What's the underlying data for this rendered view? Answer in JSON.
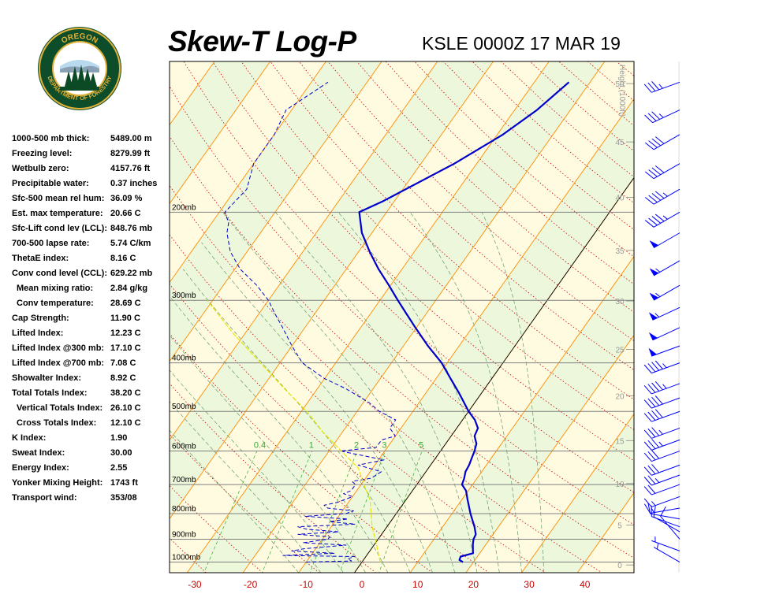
{
  "header": {
    "title": "Skew-T Log-P",
    "station": "KSLE 0000Z 17 MAR 19"
  },
  "logo": {
    "top_text": "OREGON",
    "ring_text": "DEPARTMENT OF FORESTRY",
    "colors": {
      "ring": "#0e4d2a",
      "gold": "#e0b23a",
      "tree": "#0b4a24"
    }
  },
  "indices": [
    {
      "label": "1000-500 mb thick:",
      "value": "5489.00 m"
    },
    {
      "label": "Freezing level:",
      "value": "8279.99 ft"
    },
    {
      "label": "Wetbulb zero:",
      "value": "4157.76 ft"
    },
    {
      "label": "Precipitable water:",
      "value": "0.37 inches"
    },
    {
      "label": "Sfc-500 mean rel hum:",
      "value": "36.09 %"
    },
    {
      "label": "Est. max temperature:",
      "value": "20.66 C"
    },
    {
      "label": "Sfc-Lift cond lev (LCL):",
      "value": "848.76 mb"
    },
    {
      "label": "700-500 lapse rate:",
      "value": "5.74 C/km"
    },
    {
      "label": "ThetaE index:",
      "value": "8.16 C"
    },
    {
      "label": "Conv cond level (CCL):",
      "value": "629.22 mb"
    },
    {
      "label": "Mean mixing ratio:",
      "value": "2.84 g/kg",
      "indent": true
    },
    {
      "label": "Conv temperature:",
      "value": "28.69 C",
      "indent": true
    },
    {
      "label": "Cap Strength:",
      "value": "11.90 C"
    },
    {
      "label": "Lifted Index:",
      "value": "12.23 C"
    },
    {
      "label": "Lifted Index @300 mb:",
      "value": "17.10 C"
    },
    {
      "label": "Lifted Index @700 mb:",
      "value": "7.08 C"
    },
    {
      "label": "Showalter Index:",
      "value": "8.92 C"
    },
    {
      "label": "Total Totals Index:",
      "value": "38.20 C"
    },
    {
      "label": "Vertical Totals Index:",
      "value": "26.10 C",
      "indent": true
    },
    {
      "label": "Cross Totals Index:",
      "value": "12.10 C",
      "indent": true
    },
    {
      "label": "K Index:",
      "value": "1.90"
    },
    {
      "label": "Sweat Index:",
      "value": "30.00"
    },
    {
      "label": "Energy Index:",
      "value": "2.55"
    },
    {
      "label": "Yonker Mixing Height:",
      "value": "1743 ft"
    },
    {
      "label": "Transport wind:",
      "value": "353/08"
    }
  ],
  "chart_data": {
    "type": "line",
    "title": "Skew-T Log-P",
    "xlabel": "",
    "ylabel": "",
    "xlim": [
      -35,
      48
    ],
    "ylim_mb": [
      1050,
      100
    ],
    "x_ticks": [
      "-30",
      "-20",
      "-10",
      "0",
      "10",
      "20",
      "30",
      "40"
    ],
    "pressure_levels": [
      {
        "p": 1000,
        "label": "1000mb"
      },
      {
        "p": 900,
        "label": "900mb"
      },
      {
        "p": 800,
        "label": "800mb"
      },
      {
        "p": 700,
        "label": "700mb"
      },
      {
        "p": 600,
        "label": "600mb"
      },
      {
        "p": 500,
        "label": "500mb"
      },
      {
        "p": 400,
        "label": "400mb"
      },
      {
        "p": 300,
        "label": "300mb"
      },
      {
        "p": 200,
        "label": "200mb"
      }
    ],
    "height_axis": {
      "label": "Height (1000ft)",
      "ticks": [
        "0",
        "5",
        "10",
        "15",
        "20",
        "25",
        "30",
        "35",
        "40",
        "45",
        "50"
      ]
    },
    "mixing_ratio_labels": [
      "0.4",
      "1",
      "2",
      "3",
      "5"
    ],
    "colors": {
      "temperature": "#0000cc",
      "dewpoint": "#0000cc",
      "parcel": "#e6e600",
      "isotherm": "#ff8c00",
      "dry_adiabat": "#cc0000",
      "moist_adiabat": "#669966",
      "mixing_ratio": "#33aa33",
      "isobar": "#808080",
      "wind": "#0000ff",
      "band_a": "#fffbe0",
      "band_b": "#edf7dc",
      "tick_text": "#cc0000"
    },
    "series": [
      {
        "key": "temperature",
        "points": [
          [
            1000,
            18.1
          ],
          [
            990,
            17.2
          ],
          [
            975,
            17.0
          ],
          [
            960,
            18.8
          ],
          [
            940,
            18.2
          ],
          [
            920,
            17.6
          ],
          [
            900,
            17.1
          ],
          [
            880,
            16.9
          ],
          [
            850,
            15.7
          ],
          [
            800,
            13.3
          ],
          [
            750,
            11.0
          ],
          [
            720,
            9.6
          ],
          [
            700,
            8.1
          ],
          [
            680,
            7.7
          ],
          [
            660,
            7.1
          ],
          [
            640,
            6.9
          ],
          [
            620,
            6.5
          ],
          [
            600,
            6.1
          ],
          [
            580,
            5.5
          ],
          [
            560,
            4.2
          ],
          [
            540,
            3.8
          ],
          [
            520,
            2.2
          ],
          [
            500,
            0.0
          ],
          [
            460,
            -4.0
          ],
          [
            430,
            -7.4
          ],
          [
            400,
            -11.0
          ],
          [
            370,
            -15.6
          ],
          [
            340,
            -20.2
          ],
          [
            320,
            -23.4
          ],
          [
            300,
            -26.8
          ],
          [
            280,
            -30.3
          ],
          [
            260,
            -34.2
          ],
          [
            240,
            -38.0
          ],
          [
            220,
            -41.8
          ],
          [
            200,
            -44.9
          ],
          [
            190,
            -42.0
          ],
          [
            160,
            -34.0
          ],
          [
            140,
            -29.0
          ],
          [
            125,
            -26.0
          ],
          [
            110,
            -23.8
          ]
        ]
      },
      {
        "key": "dewpoint",
        "points": [
          [
            1000,
            -10.0
          ],
          [
            995,
            -2.0
          ],
          [
            985,
            -3.0
          ],
          [
            975,
            -2.0
          ],
          [
            970,
            -15.0
          ],
          [
            960,
            -6.0
          ],
          [
            950,
            -14.0
          ],
          [
            940,
            -12.0
          ],
          [
            925,
            -5.0
          ],
          [
            915,
            -13.0
          ],
          [
            900,
            -9.0
          ],
          [
            890,
            -9.0
          ],
          [
            880,
            -15.0
          ],
          [
            870,
            -8.0
          ],
          [
            860,
            -14.0
          ],
          [
            850,
            -16.0
          ],
          [
            840,
            -6.0
          ],
          [
            830,
            -11.0
          ],
          [
            820,
            -8.0
          ],
          [
            810,
            -16.0
          ],
          [
            800,
            -9.0
          ],
          [
            790,
            -8.0
          ],
          [
            780,
            -13.0
          ],
          [
            770,
            -14.0
          ],
          [
            760,
            -12.0
          ],
          [
            750,
            -11.0
          ],
          [
            740,
            -10.0
          ],
          [
            730,
            -12.0
          ],
          [
            720,
            -11.0
          ],
          [
            700,
            -11.0
          ],
          [
            690,
            -12.0
          ],
          [
            680,
            -9.0
          ],
          [
            660,
            -8.0
          ],
          [
            640,
            -13.0
          ],
          [
            625,
            -9.0
          ],
          [
            600,
            -18.0
          ],
          [
            590,
            -12.0
          ],
          [
            570,
            -12.0
          ],
          [
            560,
            -10.0
          ],
          [
            540,
            -12.0
          ],
          [
            520,
            -12.0
          ],
          [
            500,
            -16.0
          ],
          [
            480,
            -19.0
          ],
          [
            450,
            -25.0
          ],
          [
            430,
            -30.0
          ],
          [
            400,
            -36.0
          ],
          [
            370,
            -40.0
          ],
          [
            340,
            -44.0
          ],
          [
            320,
            -47.0
          ],
          [
            300,
            -50.0
          ],
          [
            280,
            -54.0
          ],
          [
            260,
            -59.0
          ],
          [
            240,
            -63.0
          ],
          [
            220,
            -66.0
          ],
          [
            210,
            -67.0
          ],
          [
            200,
            -69.0
          ],
          [
            180,
            -68.0
          ],
          [
            160,
            -70.0
          ],
          [
            140,
            -70.0
          ],
          [
            125,
            -71.0
          ],
          [
            110,
            -67.0
          ]
        ]
      },
      {
        "key": "parcel",
        "points": [
          [
            1000,
            3.3
          ],
          [
            960,
            1.8
          ],
          [
            920,
            0.3
          ],
          [
            849,
            -2.7
          ],
          [
            800,
            -4.5
          ],
          [
            750,
            -6.5
          ],
          [
            700,
            -9.5
          ],
          [
            650,
            -12.5
          ],
          [
            600,
            -17.8
          ],
          [
            550,
            -23.5
          ],
          [
            500,
            -29.0
          ],
          [
            450,
            -36.0
          ],
          [
            400,
            -43.5
          ],
          [
            350,
            -52.0
          ],
          [
            300,
            -61.0
          ]
        ]
      }
    ],
    "wind_barbs": [
      {
        "p": 1000,
        "dir": 300,
        "spd": 5
      },
      {
        "p": 950,
        "dir": 290,
        "spd": 5
      },
      {
        "p": 900,
        "dir": 320,
        "spd": 10
      },
      {
        "p": 870,
        "dir": 300,
        "spd": 10
      },
      {
        "p": 850,
        "dir": 290,
        "spd": 10
      },
      {
        "p": 820,
        "dir": 280,
        "spd": 10
      },
      {
        "p": 780,
        "dir": 260,
        "spd": 15
      },
      {
        "p": 740,
        "dir": 250,
        "spd": 15
      },
      {
        "p": 700,
        "dir": 250,
        "spd": 20
      },
      {
        "p": 670,
        "dir": 250,
        "spd": 25
      },
      {
        "p": 640,
        "dir": 250,
        "spd": 30
      },
      {
        "p": 600,
        "dir": 250,
        "spd": 30
      },
      {
        "p": 570,
        "dir": 250,
        "spd": 35
      },
      {
        "p": 540,
        "dir": 250,
        "spd": 35
      },
      {
        "p": 500,
        "dir": 250,
        "spd": 40
      },
      {
        "p": 470,
        "dir": 250,
        "spd": 40
      },
      {
        "p": 440,
        "dir": 250,
        "spd": 45
      },
      {
        "p": 400,
        "dir": 250,
        "spd": 45
      },
      {
        "p": 370,
        "dir": 250,
        "spd": 50
      },
      {
        "p": 340,
        "dir": 245,
        "spd": 50
      },
      {
        "p": 310,
        "dir": 245,
        "spd": 55
      },
      {
        "p": 280,
        "dir": 240,
        "spd": 55
      },
      {
        "p": 250,
        "dir": 240,
        "spd": 55
      },
      {
        "p": 220,
        "dir": 240,
        "spd": 50
      },
      {
        "p": 200,
        "dir": 240,
        "spd": 45
      },
      {
        "p": 180,
        "dir": 240,
        "spd": 45
      },
      {
        "p": 160,
        "dir": 240,
        "spd": 40
      },
      {
        "p": 140,
        "dir": 240,
        "spd": 40
      },
      {
        "p": 125,
        "dir": 245,
        "spd": 35
      },
      {
        "p": 110,
        "dir": 250,
        "spd": 35
      }
    ]
  }
}
